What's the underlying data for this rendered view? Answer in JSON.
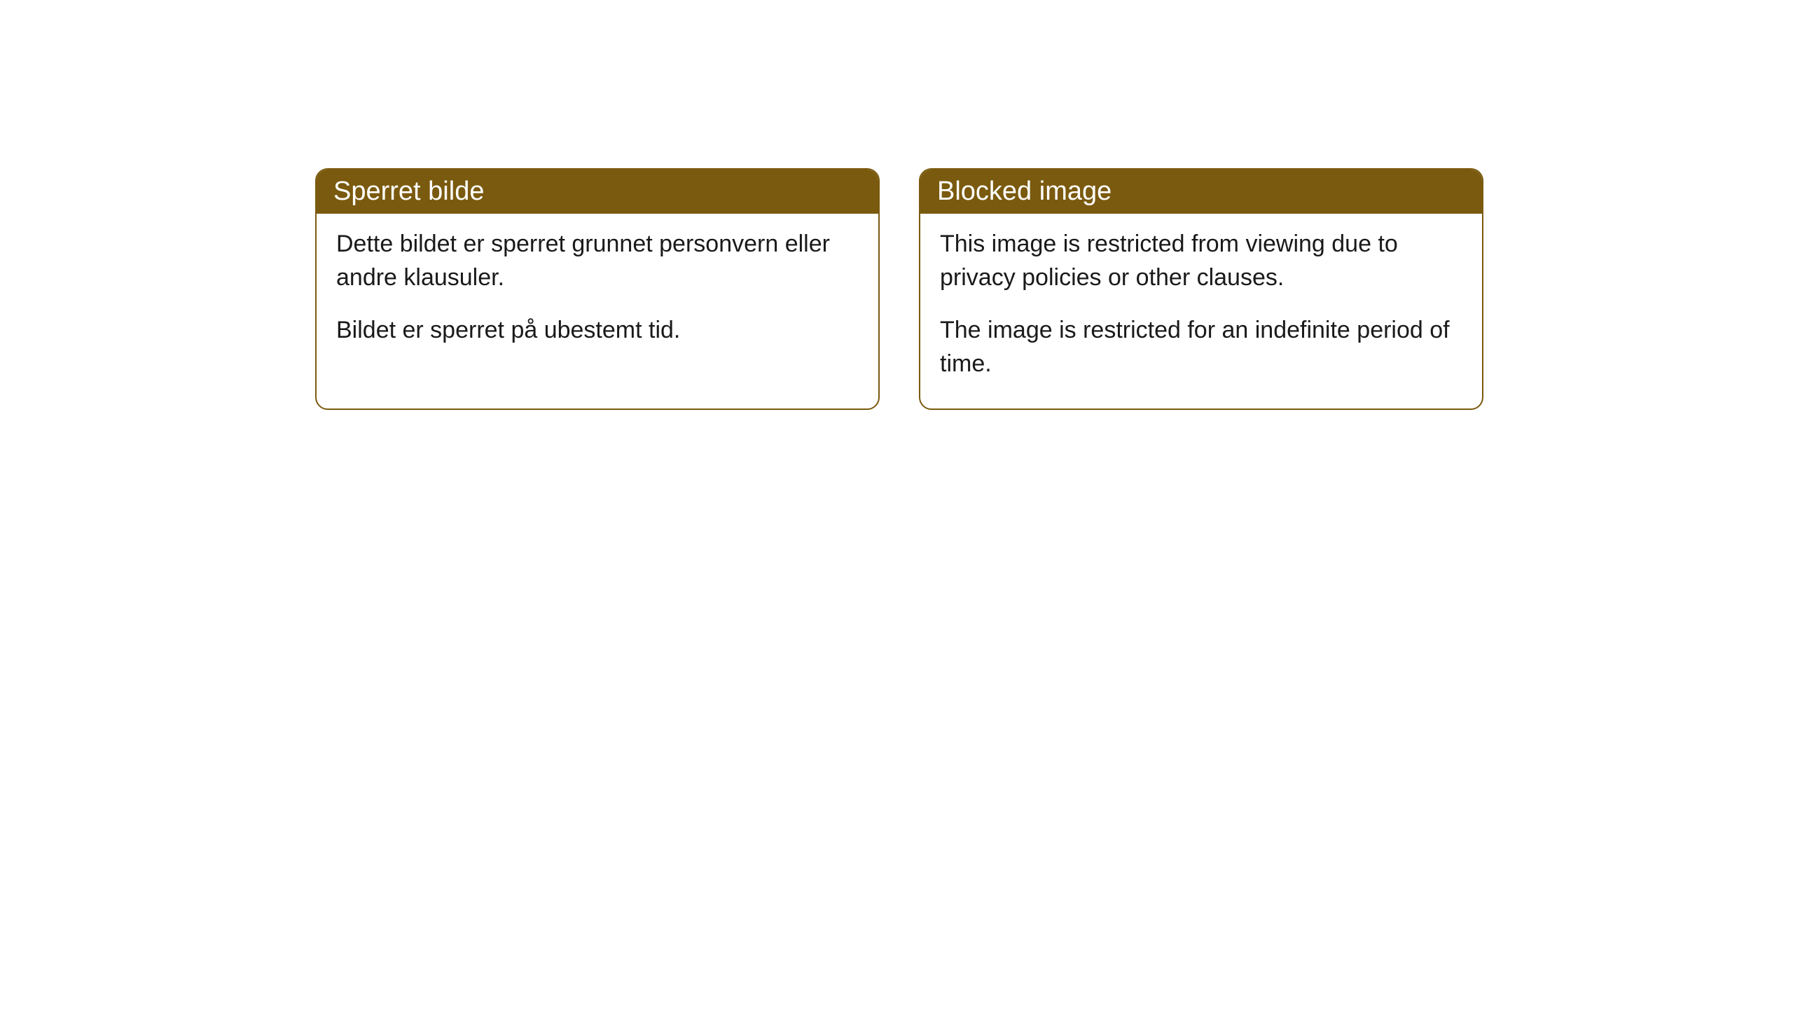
{
  "boxes": [
    {
      "title": "Sperret bilde",
      "paragraph1": "Dette bildet er sperret grunnet personvern eller andre klausuler.",
      "paragraph2": "Bildet er sperret på ubestemt tid."
    },
    {
      "title": "Blocked image",
      "paragraph1": "This image is restricted from viewing due to privacy policies or other clauses.",
      "paragraph2": "The image is restricted for an indefinite period of time."
    }
  ],
  "styling": {
    "header_bg_color": "#7a5a0e",
    "header_text_color": "#ffffff",
    "border_color": "#7a5a0e",
    "body_text_color": "#1a1a1a",
    "background_color": "#ffffff",
    "border_radius": 18,
    "title_fontsize": 38,
    "body_fontsize": 34
  }
}
